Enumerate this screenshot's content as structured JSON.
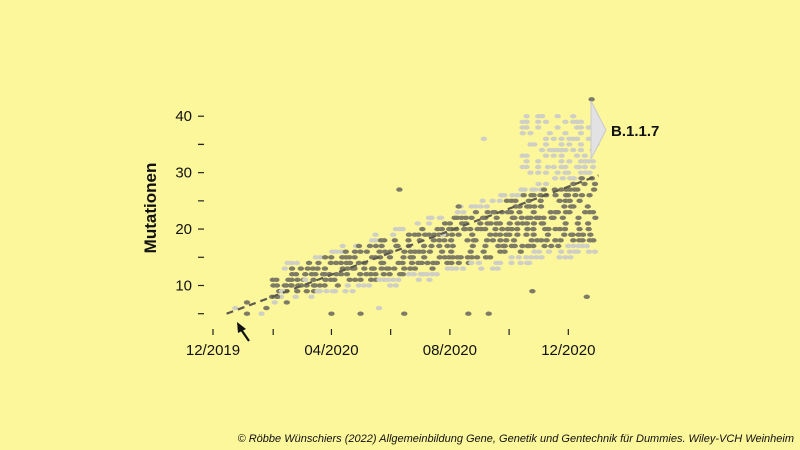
{
  "chart_data": {
    "type": "scatter",
    "ylabel": "Mutationen",
    "xlabel": "",
    "x_ticks": [
      "12/2019",
      "04/2020",
      "08/2020",
      "12/2020"
    ],
    "y_ticks": [
      10,
      20,
      30,
      40
    ],
    "ylim": [
      3,
      45
    ],
    "x_range": [
      "2019-12-01",
      "2021-01-15"
    ],
    "variant_label": "B.1.1.7",
    "trend_line": {
      "start": {
        "x": "2019-12-15",
        "y": 5
      },
      "end": {
        "x": "2021-01-01",
        "y": 29.5
      }
    },
    "series": [
      {
        "points": [
          {
            "x": "2019-12-24",
            "y": 6
          },
          {
            "x": "2020-01-05",
            "y": 5
          },
          {
            "x": "2020-01-05",
            "y": 7
          },
          {
            "x": "2020-01-20",
            "y": 5
          },
          {
            "x": "2020-01-25",
            "y": 6
          },
          {
            "x": "2020-02-05",
            "y": 8
          },
          {
            "x": "2020-02-10",
            "y": 9
          },
          {
            "x": "2020-02-15",
            "y": 7
          },
          {
            "x": "2020-02-20",
            "y": 10
          },
          {
            "x": "2020-03-05",
            "y": 11
          },
          {
            "x": "2020-04-01",
            "y": 5
          },
          {
            "x": "2020-05-01",
            "y": 5
          },
          {
            "x": "2020-05-20",
            "y": 6
          },
          {
            "x": "2020-06-10",
            "y": 27
          },
          {
            "x": "2020-06-15",
            "y": 5
          },
          {
            "x": "2020-07-25",
            "y": 19
          },
          {
            "x": "2020-08-10",
            "y": 24
          },
          {
            "x": "2020-08-20",
            "y": 5
          },
          {
            "x": "2020-09-05",
            "y": 36
          },
          {
            "x": "2020-09-10",
            "y": 5
          },
          {
            "x": "2020-10-25",
            "y": 9
          },
          {
            "x": "2020-11-10",
            "y": 31
          },
          {
            "x": "2020-12-25",
            "y": 43
          },
          {
            "x": "2020-12-20",
            "y": 8
          }
        ]
      }
    ]
  },
  "copyright": "© Röbbe Wünschiers (2022) Allgemeinbildung Gene, Genetik und Gentechnik für Dummies. Wiley-VCH Weinheim"
}
